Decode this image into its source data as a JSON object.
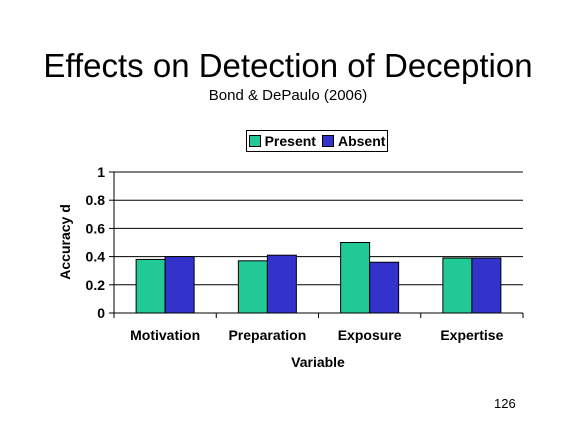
{
  "title": "Effects on Detection of Deception",
  "subtitle": "Bond & DePaulo (2006)",
  "page_number": "126",
  "colors": {
    "present": "#21C997",
    "absent": "#3333CC"
  },
  "chart_data": {
    "type": "bar",
    "categories": [
      "Motivation",
      "Preparation",
      "Exposure",
      "Expertise"
    ],
    "series": [
      {
        "name": "Present",
        "values": [
          0.38,
          0.37,
          0.5,
          0.39
        ]
      },
      {
        "name": "Absent",
        "values": [
          0.4,
          0.41,
          0.36,
          0.39
        ]
      }
    ],
    "xlabel": "Variable",
    "ylabel": "Accuracy d",
    "ylim": [
      0,
      1
    ],
    "yticks": [
      "0",
      "0.2",
      "0.4",
      "0.6",
      "0.8",
      "1"
    ],
    "grid": true,
    "legend_position": "top"
  }
}
